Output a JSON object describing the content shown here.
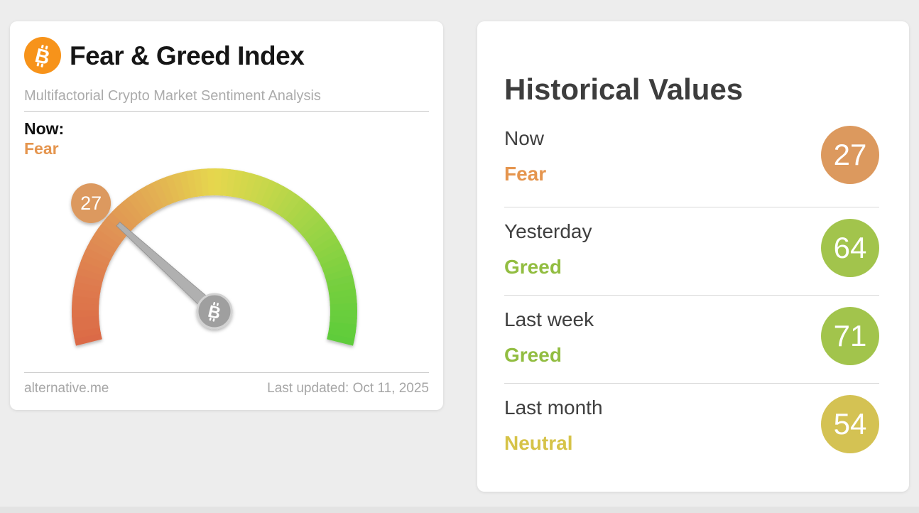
{
  "page": {
    "background": "#ededed"
  },
  "gauge_card": {
    "title": "Fear & Greed Index",
    "subtitle": "Multifactorial Crypto Market Sentiment Analysis",
    "now_label": "Now:",
    "now_sentiment": "Fear",
    "now_sentiment_color": "#e5954e",
    "source": "alternative.me",
    "last_updated": "Last updated: Oct 11, 2025",
    "bitcoin_icon": "bitcoin-logo",
    "bitcoin_icon_color": "#f7931a"
  },
  "chart_data": {
    "type": "gauge",
    "title": "Fear & Greed Index",
    "value": 27,
    "min": 0,
    "max": 100,
    "classification": "Fear",
    "start_angle_deg": 194,
    "end_angle_deg": -14,
    "gradient_stops": [
      {
        "pos": 0.0,
        "color": "#db6a45"
      },
      {
        "pos": 0.12,
        "color": "#de7a4e"
      },
      {
        "pos": 0.25,
        "color": "#e09254"
      },
      {
        "pos": 0.38,
        "color": "#e3b252"
      },
      {
        "pos": 0.5,
        "color": "#e6d74e"
      },
      {
        "pos": 0.62,
        "color": "#c3d74a"
      },
      {
        "pos": 0.75,
        "color": "#9ad445"
      },
      {
        "pos": 0.88,
        "color": "#74cf3e"
      },
      {
        "pos": 1.0,
        "color": "#5ecc3a"
      }
    ],
    "needle_color": "#b0b0b0",
    "hub_color": "#9f9f9f",
    "hub_ring_color": "#d2d2d2",
    "badge": {
      "value": "27",
      "color": "#dc995e",
      "text_color": "#ffffff"
    }
  },
  "historical": {
    "title": "Historical Values",
    "rows": [
      {
        "period": "Now",
        "sentiment": "Fear",
        "value": "27",
        "text_color": "#e5954e",
        "badge_color": "#dc995e"
      },
      {
        "period": "Yesterday",
        "sentiment": "Greed",
        "value": "64",
        "text_color": "#92bd41",
        "badge_color": "#a2c44c"
      },
      {
        "period": "Last week",
        "sentiment": "Greed",
        "value": "71",
        "text_color": "#92bd41",
        "badge_color": "#a2c44c"
      },
      {
        "period": "Last month",
        "sentiment": "Neutral",
        "value": "54",
        "text_color": "#d6c348",
        "badge_color": "#d4c253"
      }
    ]
  }
}
